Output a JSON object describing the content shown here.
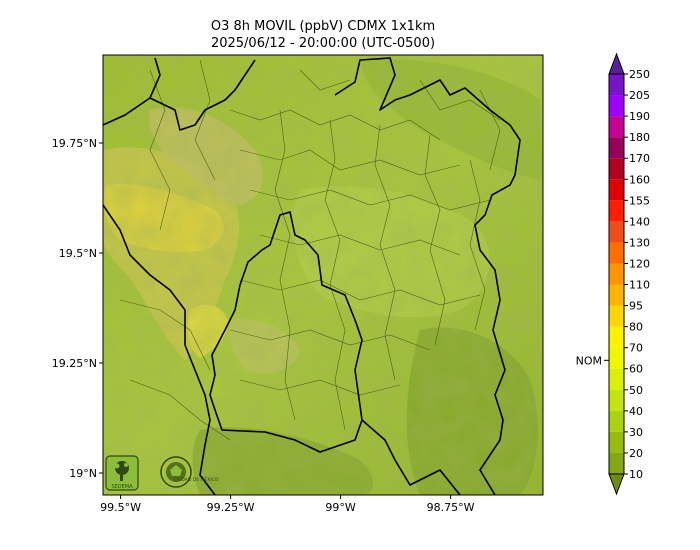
{
  "map": {
    "title_line1": "O3 8h MOVIL (ppbV) CDMX 1x1km",
    "title_line2": "2025/06/12 - 20:00:00 (UTC-0500)",
    "lat_ticks": [
      "19.75°N",
      "19.5°N",
      "19.25°N",
      "19°N"
    ],
    "lon_ticks": [
      "99.5°W",
      "99.25°W",
      "99°W",
      "98.75°W"
    ],
    "lat_values": [
      19.75,
      19.5,
      19.25,
      19.0
    ],
    "lon_values": [
      -99.5,
      -99.25,
      -99.0,
      -98.75
    ],
    "lat_range": [
      18.95,
      19.95
    ],
    "lon_range": [
      -99.54,
      -98.54
    ],
    "logos": [
      "SEDEMA",
      "CIUDAD DE MÉXICO"
    ]
  },
  "colorbar": {
    "levels": [
      "10",
      "20",
      "30",
      "40",
      "50",
      "60",
      "70",
      "80",
      "95",
      "110",
      "120",
      "130",
      "140",
      "155",
      "160",
      "170",
      "180",
      "190",
      "205",
      "250"
    ],
    "colors": [
      "#6e8c14",
      "#84a516",
      "#96bc12",
      "#abd10f",
      "#c3e40c",
      "#d9f00a",
      "#eef700",
      "#fff200",
      "#ffd700",
      "#ffb400",
      "#ff9600",
      "#ff6e00",
      "#f04e18",
      "#ff1e00",
      "#e00000",
      "#b40020",
      "#96005a",
      "#c80096",
      "#a000ff",
      "#7814c8",
      "#5a1e96"
    ],
    "nom_label": "NOM",
    "nom_value": 60
  }
}
